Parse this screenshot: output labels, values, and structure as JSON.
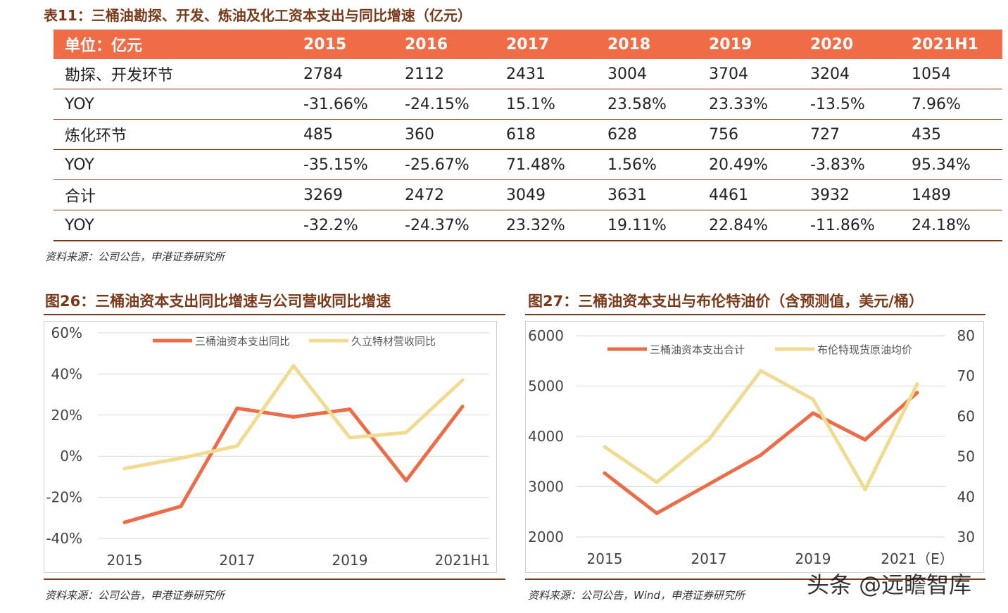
{
  "table": {
    "title": "表11：三桶油勘探、开发、炼油及化工资本支出与同比增速（亿元）",
    "header": [
      "单位：亿元",
      "2015",
      "2016",
      "2017",
      "2018",
      "2019",
      "2020",
      "2021H1"
    ],
    "rows": [
      [
        "勘探、开发环节",
        "2784",
        "2112",
        "2431",
        "3004",
        "3704",
        "3204",
        "1054"
      ],
      [
        "YOY",
        "-31.66%",
        "-24.15%",
        "15.1%",
        "23.58%",
        "23.33%",
        "-13.5%",
        "7.96%"
      ],
      [
        "炼化环节",
        "485",
        "360",
        "618",
        "628",
        "756",
        "727",
        "435"
      ],
      [
        "YOY",
        "-35.15%",
        "-25.67%",
        "71.48%",
        "1.56%",
        "20.49%",
        "-3.83%",
        "95.34%"
      ],
      [
        "合计",
        "3269",
        "2472",
        "3049",
        "3631",
        "4461",
        "3932",
        "1489"
      ],
      [
        "YOY",
        "-32.2%",
        "-24.37%",
        "23.32%",
        "19.11%",
        "22.84%",
        "-11.86%",
        "24.18%"
      ]
    ],
    "source": "资料来源：公司公告，申港证券研究所"
  },
  "colors": {
    "accent": "#ef6c46",
    "series_orange": "#ee6b47",
    "series_yellow": "#f0db90",
    "title_brown": "#7a3a1a",
    "grid": "#d9d9d9"
  },
  "chart_data": [
    {
      "type": "line",
      "title": "图26：三桶油资本支出同比增速与公司营收同比增速",
      "x": [
        "2015",
        "2016",
        "2017",
        "2018",
        "2019",
        "2020",
        "2021H1"
      ],
      "x_tick_labels": [
        "2015",
        "2017",
        "2019",
        "2021H1"
      ],
      "y_ticks": [
        "60%",
        "40%",
        "20%",
        "0%",
        "-20%",
        "-40%"
      ],
      "ylim": [
        -40,
        60
      ],
      "grid": true,
      "legend": "top",
      "series": [
        {
          "name": "三桶油资本支出同比",
          "values": [
            -32.2,
            -24.37,
            23.32,
            19.11,
            22.84,
            -11.86,
            24.18
          ]
        },
        {
          "name": "久立特材营收同比",
          "values": [
            -6,
            -1,
            5,
            44,
            9,
            11.5,
            37
          ]
        }
      ],
      "source": "资料来源：公司公告，申港证券研究所"
    },
    {
      "type": "line",
      "title": "图27：三桶油资本支出与布伦特油价（含预测值，美元/桶）",
      "x": [
        "2015",
        "2016",
        "2017",
        "2018",
        "2019",
        "2020",
        "2021（E）"
      ],
      "x_tick_labels": [
        "2015",
        "2017",
        "2019",
        "2021（E）"
      ],
      "y_ticks_left": [
        "6000",
        "5000",
        "4000",
        "3000",
        "2000"
      ],
      "y_ticks_right": [
        "80",
        "70",
        "60",
        "50",
        "40",
        "30"
      ],
      "ylim_left": [
        2000,
        6000
      ],
      "ylim_right": [
        30,
        80
      ],
      "grid": true,
      "legend": "top",
      "series": [
        {
          "name": "三桶油资本支出合计",
          "axis": "left",
          "values": [
            3269,
            2472,
            3049,
            3631,
            4461,
            3932,
            4870
          ]
        },
        {
          "name": "布伦特现货原油均价",
          "axis": "right",
          "values": [
            52.4,
            43.6,
            54.2,
            71.3,
            64.2,
            41.8,
            68
          ]
        }
      ],
      "source": "资料来源：公司公告，Wind，申港证券研究所"
    }
  ],
  "watermark": "头条 @远瞻智库"
}
